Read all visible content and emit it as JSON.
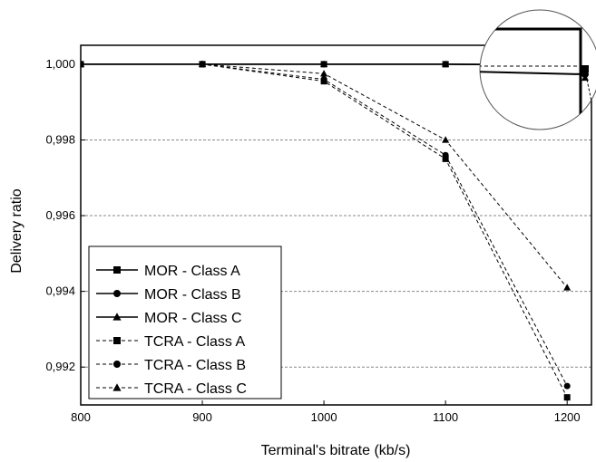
{
  "chart_data": {
    "type": "line",
    "title": "",
    "xlabel": "Terminal's bitrate (kb/s)",
    "ylabel": "Delivery ratio",
    "xlim": [
      800,
      1220
    ],
    "ylim": [
      0.991,
      1.0005
    ],
    "x_ticks": [
      800,
      900,
      1000,
      1100,
      1200
    ],
    "x_tick_labels": [
      "800",
      "900",
      "1000",
      "1100",
      "1200"
    ],
    "y_ticks": [
      0.992,
      0.994,
      0.996,
      0.998,
      1.0
    ],
    "y_tick_labels": [
      "0,992",
      "0,994",
      "0,996",
      "0,998",
      "1,000"
    ],
    "grid": "horizontal dashed",
    "legend_position": "bottom-left",
    "inset": "magnified circle at top-right showing series near 1,000 at 1200 kb/s",
    "x": [
      800,
      900,
      1000,
      1100,
      1200
    ],
    "series": [
      {
        "name": "MOR - Class A",
        "line": "solid",
        "marker": "square",
        "values": [
          1.0,
          1.0,
          1.0,
          1.0,
          0.99998
        ]
      },
      {
        "name": "MOR - Class B",
        "line": "solid",
        "marker": "circle",
        "values": [
          1.0,
          1.0,
          1.0,
          1.0,
          0.99998
        ]
      },
      {
        "name": "MOR - Class C",
        "line": "solid",
        "marker": "triangle",
        "values": [
          1.0,
          1.0,
          1.0,
          1.0,
          0.99999
        ]
      },
      {
        "name": "TCRA - Class A",
        "line": "dashed",
        "marker": "square",
        "values": [
          1.0,
          1.0,
          0.99955,
          0.9975,
          0.9912
        ]
      },
      {
        "name": "TCRA - Class B",
        "line": "dashed",
        "marker": "circle",
        "values": [
          1.0,
          1.0,
          0.9996,
          0.9976,
          0.9915
        ]
      },
      {
        "name": "TCRA - Class C",
        "line": "dashed",
        "marker": "triangle",
        "values": [
          1.0,
          1.0,
          0.99975,
          0.998,
          0.9941
        ]
      }
    ]
  }
}
